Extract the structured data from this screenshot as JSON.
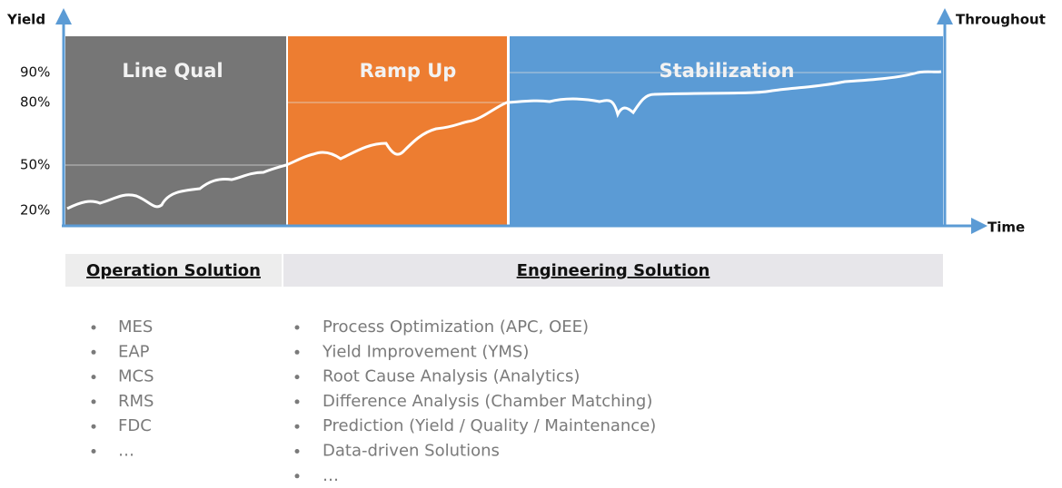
{
  "axes": {
    "y_label": "Yield",
    "y2_label": "Throughout",
    "x_label": "Time",
    "y_ticks": [
      "90%",
      "80%",
      "50%",
      "20%"
    ]
  },
  "phases": [
    {
      "label": "Line Qual"
    },
    {
      "label": "Ramp Up"
    },
    {
      "label": "Stabilization"
    }
  ],
  "solutions": [
    {
      "title": "Operation Solution",
      "items": [
        "MES",
        "EAP",
        "MCS",
        "RMS",
        "FDC",
        "…"
      ]
    },
    {
      "title": "Engineering Solution",
      "items": [
        "Process Optimization (APC, OEE)",
        "Yield Improvement (YMS)",
        "Root Cause Analysis (Analytics)",
        "Difference Analysis (Chamber Matching)",
        "Prediction (Yield / Quality / Maintenance)",
        "Data-driven Solutions",
        "…"
      ]
    }
  ]
}
